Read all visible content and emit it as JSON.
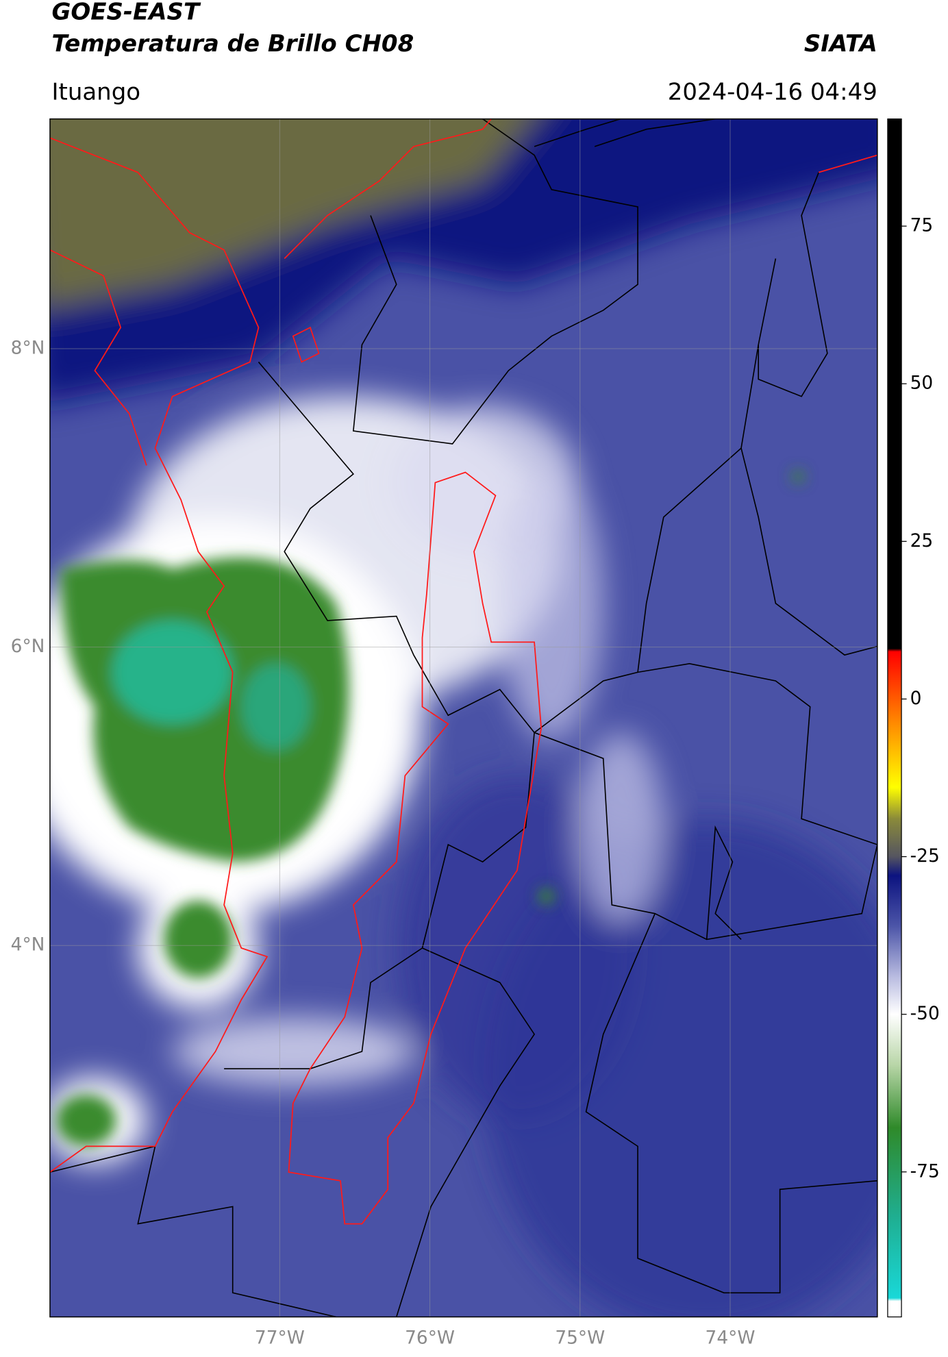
{
  "header": {
    "title_line1": "GOES-EAST",
    "title_line2": "Temperatura de Brillo CH08",
    "source": "SIATA",
    "place": "Ituango",
    "datetime": "2024-04-16 04:49"
  },
  "map": {
    "xlim": [
      -78.53,
      -73.02
    ],
    "ylim": [
      1.51,
      9.54
    ],
    "xticks": [
      {
        "value": -77,
        "label": "77°W"
      },
      {
        "value": -76,
        "label": "76°W"
      },
      {
        "value": -75,
        "label": "75°W"
      },
      {
        "value": -74,
        "label": "74°W"
      }
    ],
    "yticks": [
      {
        "value": 8,
        "label": "8°N"
      },
      {
        "value": 6,
        "label": "6°N"
      },
      {
        "value": 4,
        "label": "4°N"
      }
    ],
    "grid": true
  },
  "colorbar": {
    "lim": [
      -98,
      92
    ],
    "ticks": [
      75,
      50,
      25,
      0,
      -25,
      -50,
      -75
    ],
    "stops": [
      {
        "value": -98,
        "color": "#ffffff"
      },
      {
        "value": -95.5,
        "color": "#ffffff"
      },
      {
        "value": -95,
        "color": "#19d8d8"
      },
      {
        "value": -82,
        "color": "#1fae90"
      },
      {
        "value": -68,
        "color": "#2f8a2a"
      },
      {
        "value": -58,
        "color": "#b9d6a8"
      },
      {
        "value": -50,
        "color": "#ffffff"
      },
      {
        "value": -44,
        "color": "#b8bbe0"
      },
      {
        "value": -36,
        "color": "#4c55a8"
      },
      {
        "value": -28,
        "color": "#0c1380"
      },
      {
        "value": -25,
        "color": "#555560"
      },
      {
        "value": -19,
        "color": "#8a8a3a"
      },
      {
        "value": -14,
        "color": "#ffff00"
      },
      {
        "value": -4,
        "color": "#ff8c00"
      },
      {
        "value": 7.5,
        "color": "#ff0000"
      },
      {
        "value": 8,
        "color": "#000000"
      },
      {
        "value": 92,
        "color": "#000000"
      }
    ]
  }
}
